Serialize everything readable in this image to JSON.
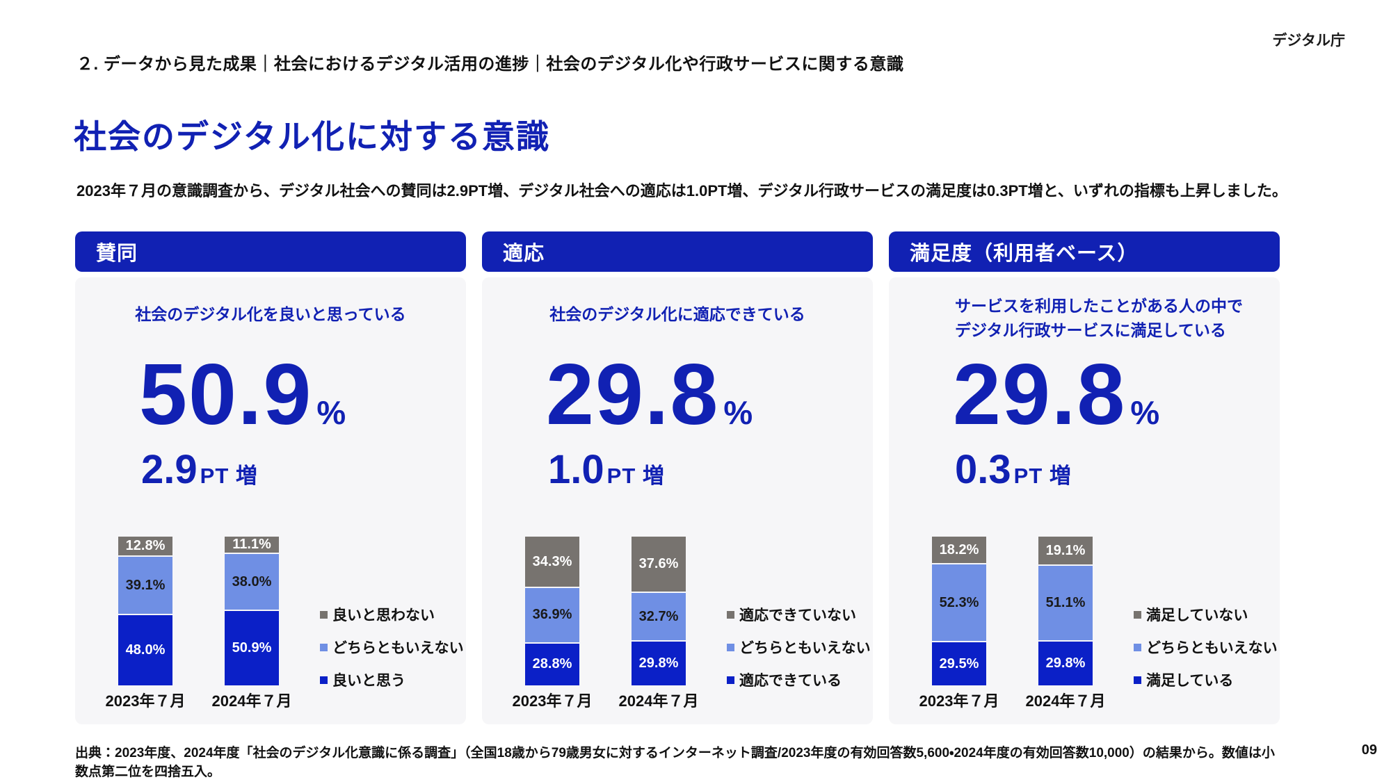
{
  "page": {
    "agency": "デジタル庁",
    "breadcrumb": "２. データから見た成果｜社会におけるデジタル活用の進捗｜社会のデジタル化や行政サービスに関する意識",
    "title": "社会のデジタル化に対する意識",
    "subtitle": "2023年７月の意識調査から、デジタル社会への賛同は2.9PT増、デジタル社会への適応は1.0PT増、デジタル行政サービスの満足度は0.3PT増と、いずれの指標も上昇しました。",
    "footer": "出典：2023年度、2024年度「社会のデジタル化意識に係る調査」（全国18歳から79歳男女に対するインターネット調査/2023年度の有効回答数5,600・2024年度の有効回答数10,000）の結果から。数値は小数点第二位を四捨五入。",
    "page_number": "09"
  },
  "colors": {
    "primary_blue": "#1121B3",
    "bar_dark_blue": "#0B20C7",
    "bar_light_blue": "#6F8FE4",
    "bar_gray": "#77736F",
    "card_bg": "#F6F6F8"
  },
  "cards": [
    {
      "header": "賛同",
      "description_lines": [
        "社会のデジタル化を良いと思っている"
      ],
      "value": "50.9",
      "value_unit": "%",
      "delta_value": "2.9",
      "delta_unit": "PT 増"
    },
    {
      "header": "適応",
      "description_lines": [
        "社会のデジタル化に適応できている"
      ],
      "value": "29.8",
      "value_unit": "%",
      "delta_value": "1.0",
      "delta_unit": "PT 増"
    },
    {
      "header": "満足度（利用者ベース）",
      "description_lines": [
        "サービスを利用したことがある人の中で",
        "デジタル行政サービスに満足している"
      ],
      "value": "29.8",
      "value_unit": "%",
      "delta_value": "0.3",
      "delta_unit": "PT 増"
    }
  ],
  "chart_data": [
    {
      "type": "bar",
      "subtype": "stacked",
      "title": "賛同",
      "categories": [
        "2023年７月",
        "2024年７月"
      ],
      "series": [
        {
          "name": "良いと思わない",
          "color": "gray",
          "values": [
            12.8,
            11.1
          ]
        },
        {
          "name": "どちらともいえない",
          "color": "light_blue",
          "values": [
            39.1,
            38.0
          ]
        },
        {
          "name": "良いと思う",
          "color": "dark_blue",
          "values": [
            48.0,
            50.9
          ]
        }
      ],
      "value_suffix": "%",
      "ylim": [
        0,
        100
      ],
      "grid": false,
      "legend_position": "right"
    },
    {
      "type": "bar",
      "subtype": "stacked",
      "title": "適応",
      "categories": [
        "2023年７月",
        "2024年７月"
      ],
      "series": [
        {
          "name": "適応できていない",
          "color": "gray",
          "values": [
            34.3,
            37.6
          ]
        },
        {
          "name": "どちらともいえない",
          "color": "light_blue",
          "values": [
            36.9,
            32.7
          ]
        },
        {
          "name": "適応できている",
          "color": "dark_blue",
          "values": [
            28.8,
            29.8
          ]
        }
      ],
      "value_suffix": "%",
      "ylim": [
        0,
        100
      ],
      "grid": false,
      "legend_position": "right"
    },
    {
      "type": "bar",
      "subtype": "stacked",
      "title": "満足度（利用者ベース）",
      "categories": [
        "2023年７月",
        "2024年７月"
      ],
      "series": [
        {
          "name": "満足していない",
          "color": "gray",
          "values": [
            18.2,
            19.1
          ]
        },
        {
          "name": "どちらともいえない",
          "color": "light_blue",
          "values": [
            52.3,
            51.1
          ]
        },
        {
          "name": "満足している",
          "color": "dark_blue",
          "values": [
            29.5,
            29.8
          ]
        }
      ],
      "value_suffix": "%",
      "ylim": [
        0,
        100
      ],
      "grid": false,
      "legend_position": "right"
    }
  ]
}
